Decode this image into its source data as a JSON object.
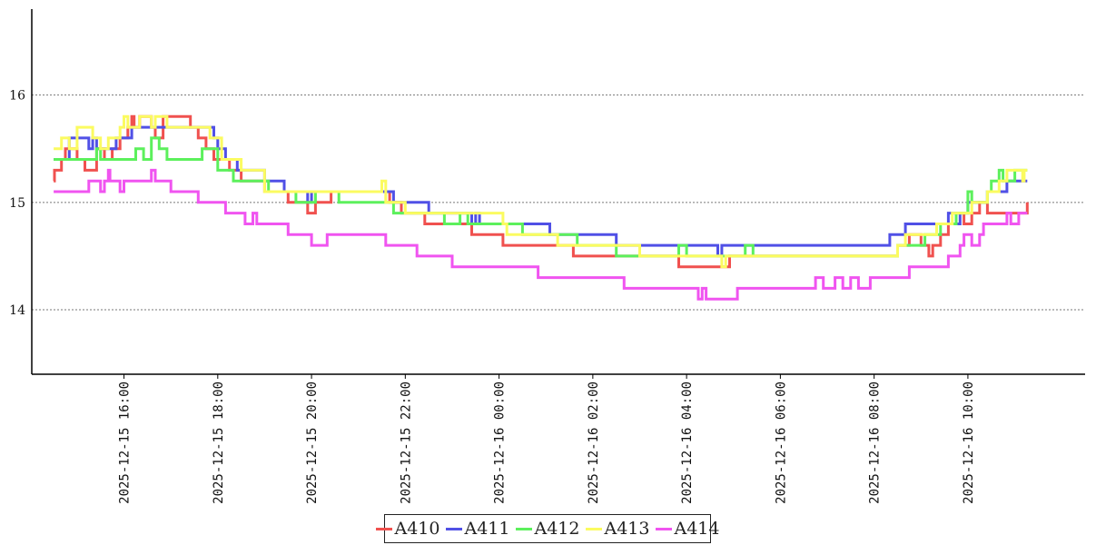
{
  "chart_data": {
    "type": "line",
    "title": "",
    "xlabel": "",
    "ylabel": "",
    "ylim": [
      13.4,
      16.8
    ],
    "yticks": [
      14,
      15,
      16
    ],
    "ytick_labels": [
      "14",
      "15",
      "16"
    ],
    "xlim": [
      "2025-12-15 14:02",
      "2025-12-16 12:30"
    ],
    "x_tick_values": [
      "2025-12-15 16:00",
      "2025-12-15 18:00",
      "2025-12-15 20:00",
      "2025-12-15 22:00",
      "2025-12-16 00:00",
      "2025-12-16 02:00",
      "2025-12-16 04:00",
      "2025-12-16 06:00",
      "2025-12-16 08:00",
      "2025-12-16 10:00"
    ],
    "x_tick_labels": [
      "2025-12-15  16:00",
      "2025-12-15  18:00",
      "2025-12-15  20:00",
      "2025-12-15  22:00",
      "2025-12-16  00:00",
      "2025-12-16  02:00",
      "2025-12-16  04:00",
      "2025-12-16  06:00",
      "2025-12-16  08:00",
      "2025-12-16  10:00"
    ],
    "grid": "horizontal dotted",
    "legend_position": "bottom-center",
    "series": [
      {
        "name": "A410",
        "color": "#f0514f",
        "step": true,
        "points": [
          [
            "2025-12-15 14:30",
            15.2
          ],
          [
            "2025-12-15 14:31",
            15.3
          ],
          [
            "2025-12-15 14:40",
            15.4
          ],
          [
            "2025-12-15 14:45",
            15.5
          ],
          [
            "2025-12-15 15:00",
            15.4
          ],
          [
            "2025-12-15 15:10",
            15.3
          ],
          [
            "2025-12-15 15:25",
            15.5
          ],
          [
            "2025-12-15 15:35",
            15.4
          ],
          [
            "2025-12-15 15:45",
            15.5
          ],
          [
            "2025-12-15 15:55",
            15.6
          ],
          [
            "2025-12-15 16:05",
            15.7
          ],
          [
            "2025-12-15 16:10",
            15.8
          ],
          [
            "2025-12-15 16:13",
            15.7
          ],
          [
            "2025-12-15 16:20",
            15.8
          ],
          [
            "2025-12-15 16:35",
            15.7
          ],
          [
            "2025-12-15 16:40",
            15.6
          ],
          [
            "2025-12-15 16:50",
            15.8
          ],
          [
            "2025-12-15 17:25",
            15.7
          ],
          [
            "2025-12-15 17:35",
            15.6
          ],
          [
            "2025-12-15 17:45",
            15.5
          ],
          [
            "2025-12-15 17:55",
            15.4
          ],
          [
            "2025-12-15 18:15",
            15.3
          ],
          [
            "2025-12-15 18:30",
            15.2
          ],
          [
            "2025-12-15 19:00",
            15.1
          ],
          [
            "2025-12-15 19:30",
            15.0
          ],
          [
            "2025-12-15 19:55",
            14.9
          ],
          [
            "2025-12-15 20:05",
            15.0
          ],
          [
            "2025-12-15 20:25",
            15.1
          ],
          [
            "2025-12-15 21:40",
            15.0
          ],
          [
            "2025-12-15 21:55",
            14.9
          ],
          [
            "2025-12-15 22:25",
            14.8
          ],
          [
            "2025-12-15 23:25",
            14.7
          ],
          [
            "2025-12-16 00:05",
            14.6
          ],
          [
            "2025-12-16 01:35",
            14.5
          ],
          [
            "2025-12-16 03:50",
            14.4
          ],
          [
            "2025-12-16 04:55",
            14.5
          ],
          [
            "2025-12-16 08:30",
            14.6
          ],
          [
            "2025-12-16 08:45",
            14.7
          ],
          [
            "2025-12-16 09:00",
            14.6
          ],
          [
            "2025-12-16 09:10",
            14.5
          ],
          [
            "2025-12-16 09:15",
            14.6
          ],
          [
            "2025-12-16 09:25",
            14.7
          ],
          [
            "2025-12-16 09:35",
            14.8
          ],
          [
            "2025-12-16 09:45",
            14.9
          ],
          [
            "2025-12-16 09:55",
            14.8
          ],
          [
            "2025-12-16 10:05",
            14.9
          ],
          [
            "2025-12-16 10:15",
            15.0
          ],
          [
            "2025-12-16 10:25",
            14.9
          ],
          [
            "2025-12-16 11:15",
            14.9
          ],
          [
            "2025-12-16 11:16",
            15.0
          ]
        ]
      },
      {
        "name": "A411",
        "color": "#5050e6",
        "step": true,
        "points": [
          [
            "2025-12-15 14:30",
            15.4
          ],
          [
            "2025-12-15 14:50",
            15.6
          ],
          [
            "2025-12-15 15:15",
            15.5
          ],
          [
            "2025-12-15 15:20",
            15.6
          ],
          [
            "2025-12-15 15:25",
            15.5
          ],
          [
            "2025-12-15 15:50",
            15.6
          ],
          [
            "2025-12-15 16:10",
            15.7
          ],
          [
            "2025-12-15 17:55",
            15.6
          ],
          [
            "2025-12-15 18:00",
            15.5
          ],
          [
            "2025-12-15 18:10",
            15.4
          ],
          [
            "2025-12-15 18:25",
            15.3
          ],
          [
            "2025-12-15 19:00",
            15.2
          ],
          [
            "2025-12-15 19:25",
            15.1
          ],
          [
            "2025-12-15 19:55",
            15.0
          ],
          [
            "2025-12-15 20:00",
            15.1
          ],
          [
            "2025-12-15 21:45",
            15.0
          ],
          [
            "2025-12-15 22:30",
            14.9
          ],
          [
            "2025-12-15 23:25",
            14.8
          ],
          [
            "2025-12-15 23:30",
            14.9
          ],
          [
            "2025-12-15 23:35",
            14.8
          ],
          [
            "2025-12-16 01:05",
            14.7
          ],
          [
            "2025-12-16 02:30",
            14.6
          ],
          [
            "2025-12-16 04:40",
            14.5
          ],
          [
            "2025-12-16 04:45",
            14.6
          ],
          [
            "2025-12-16 08:20",
            14.7
          ],
          [
            "2025-12-16 08:40",
            14.8
          ],
          [
            "2025-12-16 09:35",
            14.9
          ],
          [
            "2025-12-16 09:45",
            14.8
          ],
          [
            "2025-12-16 09:50",
            14.9
          ],
          [
            "2025-12-16 10:00",
            15.0
          ],
          [
            "2025-12-16 10:25",
            15.1
          ],
          [
            "2025-12-16 10:50",
            15.2
          ],
          [
            "2025-12-16 11:16",
            15.2
          ]
        ]
      },
      {
        "name": "A412",
        "color": "#5cf05c",
        "step": true,
        "points": [
          [
            "2025-12-15 14:30",
            15.4
          ],
          [
            "2025-12-15 15:25",
            15.5
          ],
          [
            "2025-12-15 15:30",
            15.4
          ],
          [
            "2025-12-15 16:15",
            15.5
          ],
          [
            "2025-12-15 16:25",
            15.4
          ],
          [
            "2025-12-15 16:35",
            15.6
          ],
          [
            "2025-12-15 16:45",
            15.5
          ],
          [
            "2025-12-15 16:55",
            15.4
          ],
          [
            "2025-12-15 17:40",
            15.5
          ],
          [
            "2025-12-15 18:00",
            15.3
          ],
          [
            "2025-12-15 18:20",
            15.2
          ],
          [
            "2025-12-15 19:05",
            15.1
          ],
          [
            "2025-12-15 19:40",
            15.0
          ],
          [
            "2025-12-15 20:05",
            15.1
          ],
          [
            "2025-12-15 20:35",
            15.0
          ],
          [
            "2025-12-15 21:45",
            14.9
          ],
          [
            "2025-12-15 22:50",
            14.8
          ],
          [
            "2025-12-15 23:10",
            14.9
          ],
          [
            "2025-12-15 23:20",
            14.8
          ],
          [
            "2025-12-16 00:30",
            14.7
          ],
          [
            "2025-12-16 01:40",
            14.6
          ],
          [
            "2025-12-16 02:30",
            14.5
          ],
          [
            "2025-12-16 03:50",
            14.6
          ],
          [
            "2025-12-16 04:00",
            14.5
          ],
          [
            "2025-12-16 05:15",
            14.6
          ],
          [
            "2025-12-16 05:25",
            14.5
          ],
          [
            "2025-12-16 08:30",
            14.6
          ],
          [
            "2025-12-16 09:05",
            14.7
          ],
          [
            "2025-12-16 09:25",
            14.8
          ],
          [
            "2025-12-16 09:45",
            14.9
          ],
          [
            "2025-12-16 10:00",
            15.1
          ],
          [
            "2025-12-16 10:05",
            15.0
          ],
          [
            "2025-12-16 10:25",
            15.1
          ],
          [
            "2025-12-16 10:30",
            15.2
          ],
          [
            "2025-12-16 10:40",
            15.3
          ],
          [
            "2025-12-16 10:45",
            15.2
          ],
          [
            "2025-12-16 11:00",
            15.3
          ],
          [
            "2025-12-16 11:16",
            15.3
          ]
        ]
      },
      {
        "name": "A413",
        "color": "#fbfb60",
        "step": true,
        "points": [
          [
            "2025-12-15 14:30",
            15.5
          ],
          [
            "2025-12-15 14:40",
            15.6
          ],
          [
            "2025-12-15 14:50",
            15.5
          ],
          [
            "2025-12-15 15:00",
            15.7
          ],
          [
            "2025-12-15 15:20",
            15.6
          ],
          [
            "2025-12-15 15:30",
            15.5
          ],
          [
            "2025-12-15 15:40",
            15.6
          ],
          [
            "2025-12-15 15:55",
            15.7
          ],
          [
            "2025-12-15 16:00",
            15.8
          ],
          [
            "2025-12-15 16:05",
            15.7
          ],
          [
            "2025-12-15 16:20",
            15.8
          ],
          [
            "2025-12-15 16:35",
            15.7
          ],
          [
            "2025-12-15 16:40",
            15.8
          ],
          [
            "2025-12-15 16:55",
            15.7
          ],
          [
            "2025-12-15 17:50",
            15.6
          ],
          [
            "2025-12-15 18:05",
            15.4
          ],
          [
            "2025-12-15 18:30",
            15.3
          ],
          [
            "2025-12-15 19:00",
            15.1
          ],
          [
            "2025-12-15 21:30",
            15.2
          ],
          [
            "2025-12-15 21:35",
            15.0
          ],
          [
            "2025-12-15 22:00",
            14.9
          ],
          [
            "2025-12-16 00:05",
            14.8
          ],
          [
            "2025-12-16 00:10",
            14.7
          ],
          [
            "2025-12-16 01:15",
            14.6
          ],
          [
            "2025-12-16 03:00",
            14.5
          ],
          [
            "2025-12-16 04:45",
            14.4
          ],
          [
            "2025-12-16 04:50",
            14.5
          ],
          [
            "2025-12-16 08:30",
            14.6
          ],
          [
            "2025-12-16 08:40",
            14.7
          ],
          [
            "2025-12-16 09:20",
            14.8
          ],
          [
            "2025-12-16 09:40",
            14.9
          ],
          [
            "2025-12-16 10:05",
            15.0
          ],
          [
            "2025-12-16 10:25",
            15.1
          ],
          [
            "2025-12-16 10:40",
            15.2
          ],
          [
            "2025-12-16 10:50",
            15.3
          ],
          [
            "2025-12-16 11:10",
            15.2
          ],
          [
            "2025-12-16 11:12",
            15.3
          ],
          [
            "2025-12-16 11:16",
            15.3
          ]
        ]
      },
      {
        "name": "A414",
        "color": "#f054f0",
        "step": true,
        "points": [
          [
            "2025-12-15 14:30",
            15.1
          ],
          [
            "2025-12-15 15:15",
            15.2
          ],
          [
            "2025-12-15 15:30",
            15.1
          ],
          [
            "2025-12-15 15:35",
            15.2
          ],
          [
            "2025-12-15 15:40",
            15.3
          ],
          [
            "2025-12-15 15:42",
            15.2
          ],
          [
            "2025-12-15 15:55",
            15.1
          ],
          [
            "2025-12-15 16:00",
            15.2
          ],
          [
            "2025-12-15 16:35",
            15.3
          ],
          [
            "2025-12-15 16:40",
            15.2
          ],
          [
            "2025-12-15 17:00",
            15.1
          ],
          [
            "2025-12-15 17:35",
            15.0
          ],
          [
            "2025-12-15 18:10",
            14.9
          ],
          [
            "2025-12-15 18:35",
            14.8
          ],
          [
            "2025-12-15 18:45",
            14.9
          ],
          [
            "2025-12-15 18:50",
            14.8
          ],
          [
            "2025-12-15 19:30",
            14.7
          ],
          [
            "2025-12-15 20:00",
            14.6
          ],
          [
            "2025-12-15 20:20",
            14.7
          ],
          [
            "2025-12-15 21:35",
            14.6
          ],
          [
            "2025-12-15 22:15",
            14.5
          ],
          [
            "2025-12-15 23:00",
            14.4
          ],
          [
            "2025-12-16 00:50",
            14.3
          ],
          [
            "2025-12-16 02:40",
            14.2
          ],
          [
            "2025-12-16 04:15",
            14.1
          ],
          [
            "2025-12-16 04:20",
            14.2
          ],
          [
            "2025-12-16 04:25",
            14.1
          ],
          [
            "2025-12-16 05:05",
            14.2
          ],
          [
            "2025-12-16 06:45",
            14.3
          ],
          [
            "2025-12-16 06:55",
            14.2
          ],
          [
            "2025-12-16 07:10",
            14.3
          ],
          [
            "2025-12-16 07:20",
            14.2
          ],
          [
            "2025-12-16 07:30",
            14.3
          ],
          [
            "2025-12-16 07:40",
            14.2
          ],
          [
            "2025-12-16 07:55",
            14.3
          ],
          [
            "2025-12-16 08:45",
            14.4
          ],
          [
            "2025-12-16 09:35",
            14.5
          ],
          [
            "2025-12-16 09:50",
            14.6
          ],
          [
            "2025-12-16 09:55",
            14.7
          ],
          [
            "2025-12-16 10:05",
            14.6
          ],
          [
            "2025-12-16 10:15",
            14.7
          ],
          [
            "2025-12-16 10:20",
            14.8
          ],
          [
            "2025-12-16 10:50",
            14.9
          ],
          [
            "2025-12-16 10:55",
            14.8
          ],
          [
            "2025-12-16 11:05",
            14.9
          ],
          [
            "2025-12-16 11:16",
            14.9
          ]
        ]
      }
    ]
  }
}
